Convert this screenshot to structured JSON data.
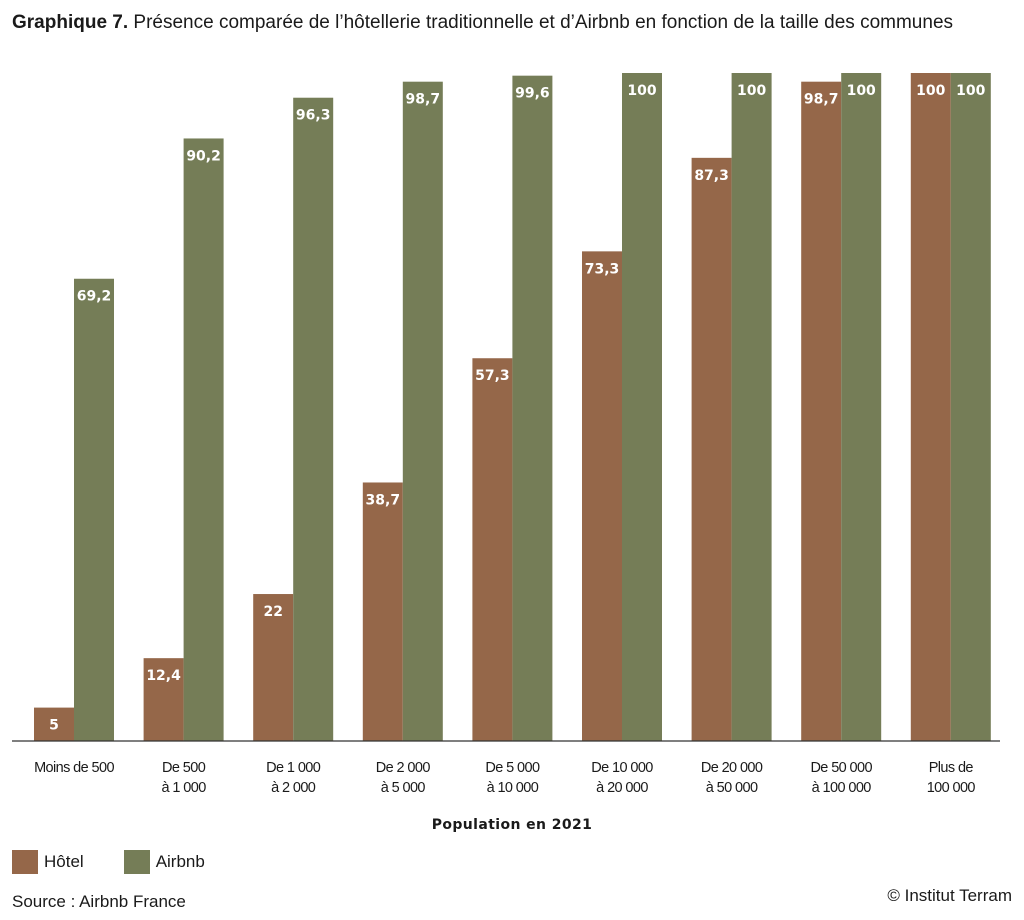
{
  "title_lead": "Graphique 7.",
  "title_rest": " Présence comparée de l’hôtellerie traditionnelle et d’Airbnb en fonction de la taille des communes",
  "source": "Source : Airbnb France",
  "credit": "© Institut Terram",
  "colors": {
    "hotel": "#956749",
    "airbnb": "#757d57",
    "axis": "#333333"
  },
  "chart_data": {
    "type": "bar",
    "title": "Graphique 7. Présence comparée de l’hôtellerie traditionnelle et d’Airbnb en fonction de la taille des communes",
    "xlabel": "Population en 2021",
    "ylabel": "",
    "ylim": [
      0,
      100
    ],
    "grid": false,
    "legend_position": "bottom-left",
    "categories": [
      [
        "Moins de 500"
      ],
      [
        "De 500",
        "à 1 000"
      ],
      [
        "De 1 000",
        "à 2 000"
      ],
      [
        "De 2 000",
        "à 5 000"
      ],
      [
        "De 5 000",
        "à 10 000"
      ],
      [
        "De 10 000",
        "à 20 000"
      ],
      [
        "De 20 000",
        "à 50 000"
      ],
      [
        "De 50 000",
        "à 100 000"
      ],
      [
        "Plus de",
        "100 000"
      ]
    ],
    "series": [
      {
        "name": "Hôtel",
        "values": [
          5,
          12.4,
          22,
          38.7,
          57.3,
          73.3,
          87.3,
          98.7,
          100
        ],
        "labels": [
          "5",
          "12,4",
          "22",
          "38,7",
          "57,3",
          "73,3",
          "87,3",
          "98,7",
          "100"
        ]
      },
      {
        "name": "Airbnb",
        "values": [
          69.2,
          90.2,
          96.3,
          98.7,
          99.6,
          100,
          100,
          100,
          100
        ],
        "labels": [
          "69,2",
          "90,2",
          "96,3",
          "98,7",
          "99,6",
          "100",
          "100",
          "100",
          "100"
        ]
      }
    ]
  }
}
